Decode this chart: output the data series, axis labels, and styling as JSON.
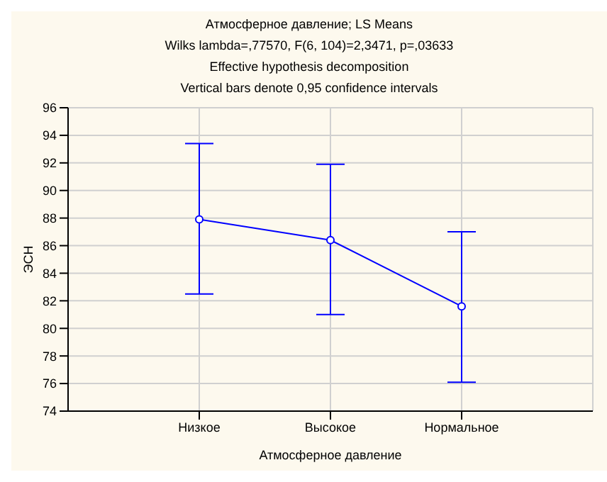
{
  "chart_data": {
    "type": "line",
    "title": "Атмосферное давление; LS Means",
    "subtitle": "Wilks lambda=,77570, F(6, 104)=2,3471, p=,03633",
    "annotations": [
      "Effective hypothesis decomposition",
      "Vertical bars denote 0,95 confidence intervals"
    ],
    "xlabel": "Атмосферное давление",
    "ylabel": "ЭСН",
    "categories": [
      "Низкое",
      "Высокое",
      "Нормальное"
    ],
    "series": [
      {
        "color": "#0000ff",
        "values": [
          87.9,
          86.4,
          81.6
        ],
        "errors": [
          [
            82.5,
            93.4
          ],
          [
            81.0,
            91.9
          ],
          [
            76.1,
            87.0
          ]
        ]
      }
    ],
    "ylim": [
      74,
      96
    ],
    "yticks": [
      74,
      76,
      78,
      80,
      82,
      84,
      86,
      88,
      90,
      92,
      94,
      96
    ],
    "grid": true,
    "marker": "circle",
    "line_style": "solid"
  }
}
